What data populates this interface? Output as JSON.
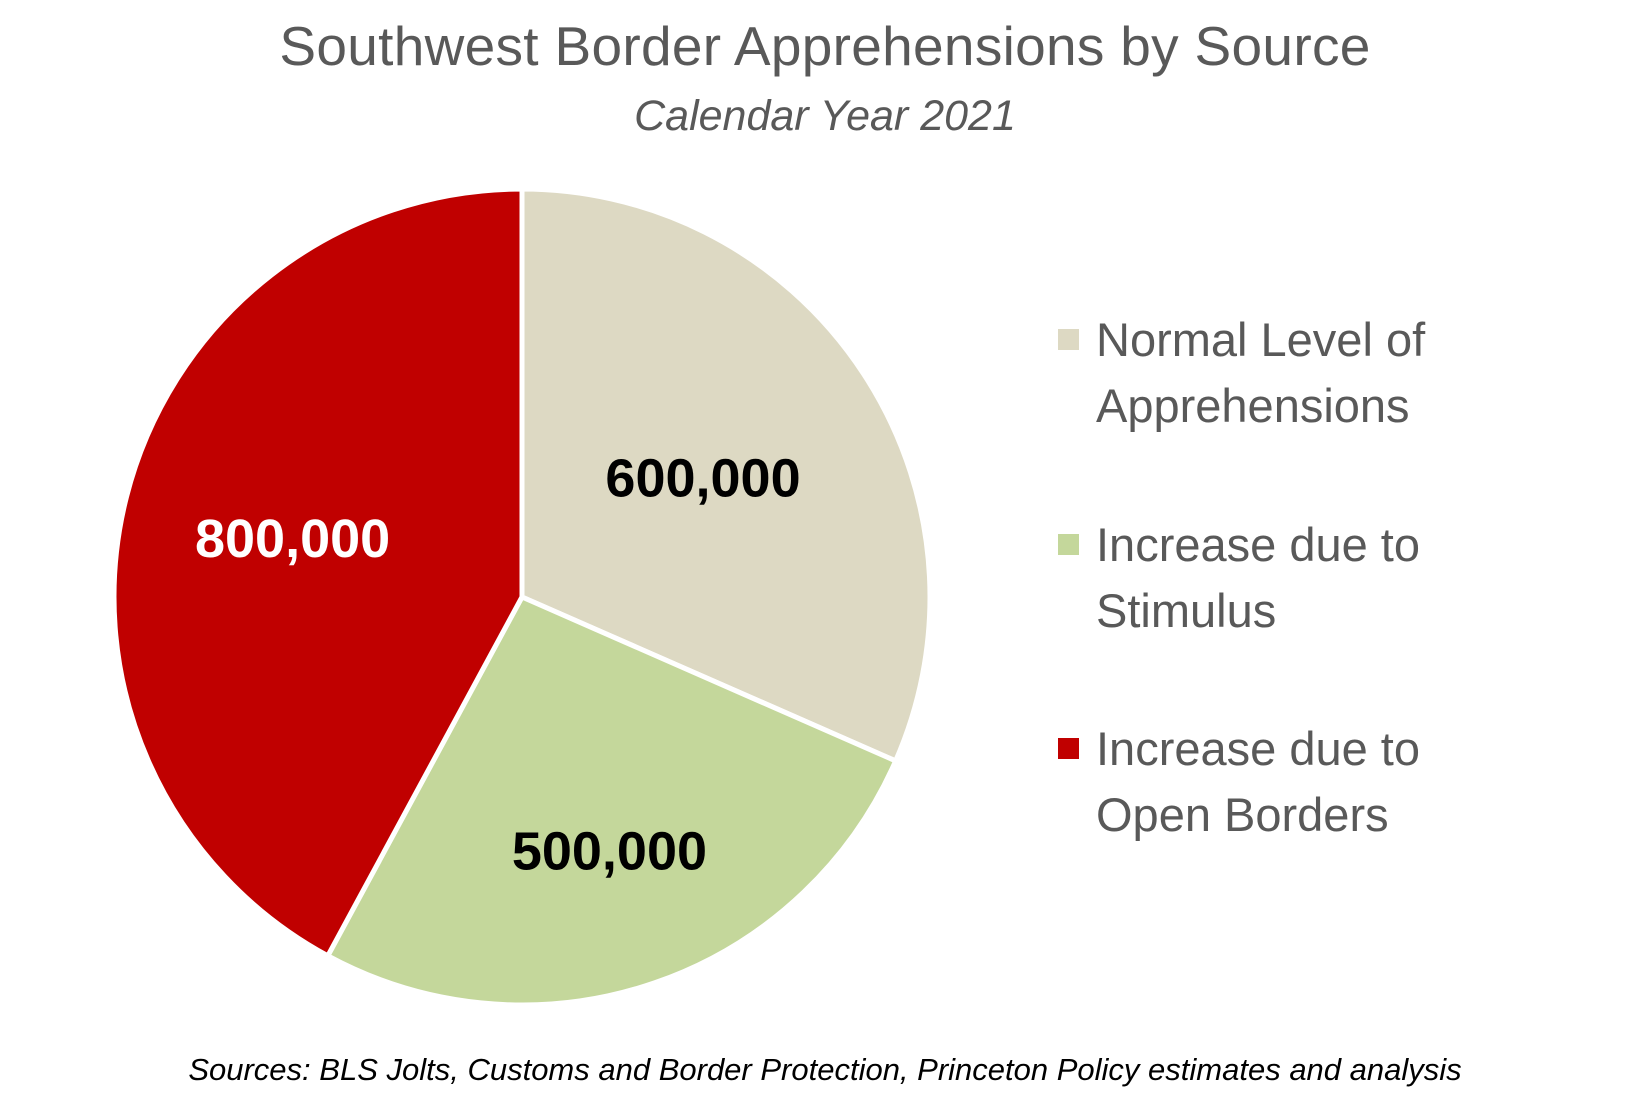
{
  "chart_data": {
    "type": "pie",
    "title": "Southwest Border Apprehensions by Source",
    "subtitle": "Calendar Year 2021",
    "categories": [
      "Normal Level of Apprehensions",
      "Increase due to Stimulus",
      "Increase due to Open Borders"
    ],
    "values": [
      600000,
      500000,
      800000
    ],
    "value_labels": [
      "600,000",
      "500,000",
      "800,000"
    ],
    "colors": [
      "#DDD9C3",
      "#C4D79B",
      "#C00000"
    ],
    "label_colors": [
      "#000000",
      "#000000",
      "#FFFFFF"
    ],
    "start_angle": "12 o'clock",
    "direction": "clockwise",
    "legend_position": "right",
    "source": "Sources: BLS Jolts, Customs and Border Protection, Princeton Policy estimates and analysis"
  },
  "legend": {
    "items": [
      {
        "line1": "Normal Level of",
        "line2": "Apprehensions",
        "color": "#DDD9C3"
      },
      {
        "line1": "Increase due to",
        "line2": "Stimulus",
        "color": "#C4D79B"
      },
      {
        "line1": "Increase due to",
        "line2": "Open Borders",
        "color": "#C00000"
      }
    ]
  }
}
